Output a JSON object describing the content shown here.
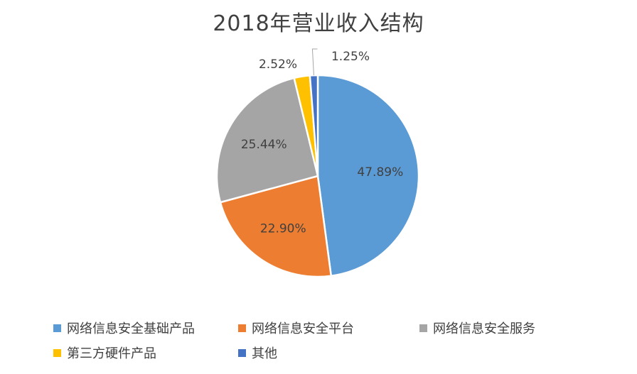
{
  "chart_data": {
    "type": "pie",
    "title": "2018年营业收入结构",
    "slices": [
      {
        "name": "网络信息安全基础产品",
        "value": 47.89,
        "label": "47.89%",
        "color": "#5b9bd5"
      },
      {
        "name": "网络信息安全平台",
        "value": 22.9,
        "label": "22.90%",
        "color": "#ed7d31"
      },
      {
        "name": "网络信息安全服务",
        "value": 25.44,
        "label": "25.44%",
        "color": "#a5a5a5"
      },
      {
        "name": "第三方硬件产品",
        "value": 2.52,
        "label": "2.52%",
        "color": "#ffc000"
      },
      {
        "name": "其他",
        "value": 1.25,
        "label": "1.25%",
        "color": "#4472c4"
      }
    ],
    "legend_position": "bottom"
  }
}
